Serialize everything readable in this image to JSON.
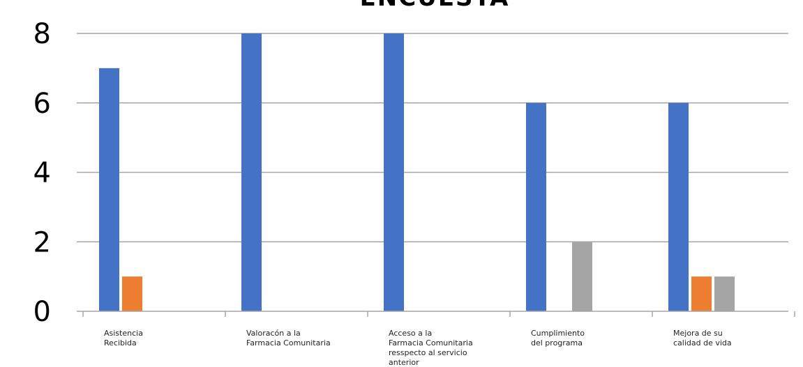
{
  "chart_data": {
    "type": "bar",
    "title": "ENCUESTA",
    "xlabel": "",
    "ylabel": "",
    "ylim": [
      0,
      8
    ],
    "yticks": [
      0,
      2,
      4,
      6,
      8
    ],
    "grid": true,
    "categories": [
      [
        "Asistencia",
        "Recibida"
      ],
      [
        "Valoracón a la",
        "Farmacia Comunitaria"
      ],
      [
        "Acceso a la",
        "Farmacia Comunitaria",
        "resspecto al servicio",
        "anterior"
      ],
      [
        "Cumplimiento",
        "del programa"
      ],
      [
        "Mejora de su",
        "calidad de vida"
      ]
    ],
    "series": [
      {
        "color": "#4472c4",
        "values": [
          7,
          8,
          8,
          6,
          6
        ]
      },
      {
        "color": "#ed7d31",
        "values": [
          1,
          0,
          0,
          0,
          1
        ]
      },
      {
        "color": "#a5a5a5",
        "values": [
          0,
          0,
          0,
          2,
          1
        ]
      }
    ]
  }
}
